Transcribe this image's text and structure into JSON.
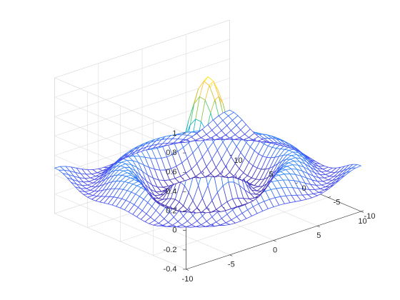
{
  "chart_data": {
    "type": "mesh",
    "function": "z = sin(r) / r, r = sqrt(x^2 + y^2)",
    "colormap": "parula",
    "x": {
      "range": [
        -10,
        10
      ],
      "ticks": [
        -10,
        -5,
        0,
        5,
        10
      ],
      "tick_labels": [
        "-10",
        "-5",
        "0",
        "5",
        "10"
      ],
      "label": ""
    },
    "y": {
      "range": [
        -10,
        10
      ],
      "ticks": [
        -10,
        -5,
        0,
        5,
        10
      ],
      "tick_labels": [
        "-10",
        "-5",
        "0",
        "5",
        "10"
      ],
      "label": ""
    },
    "z": {
      "range": [
        -0.4,
        1
      ],
      "ticks": [
        -0.4,
        -0.2,
        0,
        0.2,
        0.4,
        0.6,
        0.8,
        1
      ],
      "tick_labels": [
        "-0.4",
        "-0.2",
        "0",
        "0.2",
        "0.4",
        "0.6",
        "0.8",
        "1"
      ],
      "label": ""
    },
    "mesh_lines_per_axis": 33,
    "grid": true,
    "title": ""
  }
}
